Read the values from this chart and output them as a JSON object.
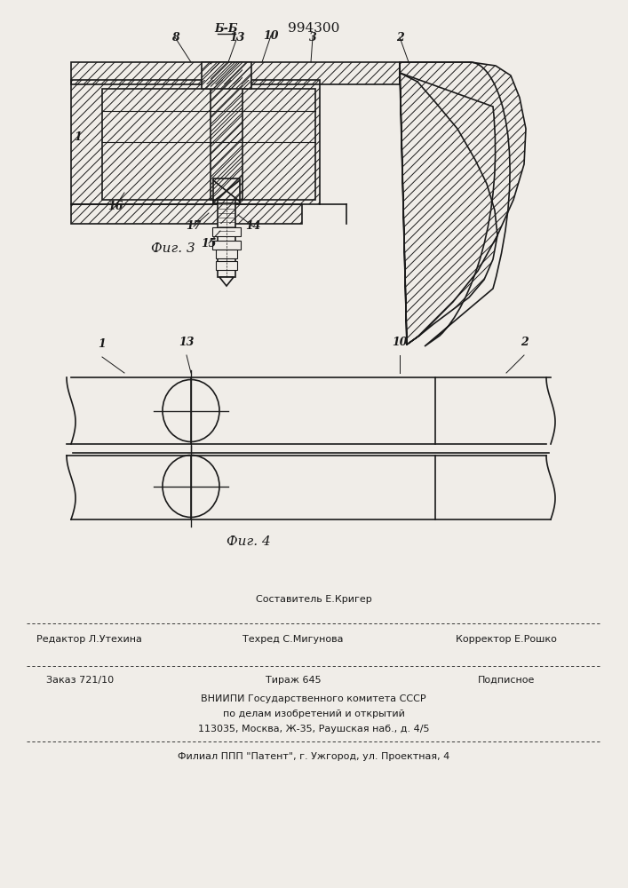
{
  "title": "994300",
  "fig3_caption": "Фиг. 3",
  "fig4_caption": "Фиг. 4",
  "bg_color": "#f0ede8",
  "line_color": "#1a1a1a",
  "hatch_color": "#1a1a1a",
  "footer_lines": [
    "Составитель Е.Кригер",
    "Редактор Л.Утехина    Техред С.Мигунова         Корректор Е.Рошко",
    "Заказ 721/10          Тираж 645                 Подписное",
    "ВНИИПИ Государственного комитета СССР",
    "по делам изобретений и открытий",
    "113035, Москва, Ж-35, Раушская наб., д. 4/5",
    "Филиал ППП \"Патент\", г. Ужгород, ул. Проектная, 4"
  ]
}
